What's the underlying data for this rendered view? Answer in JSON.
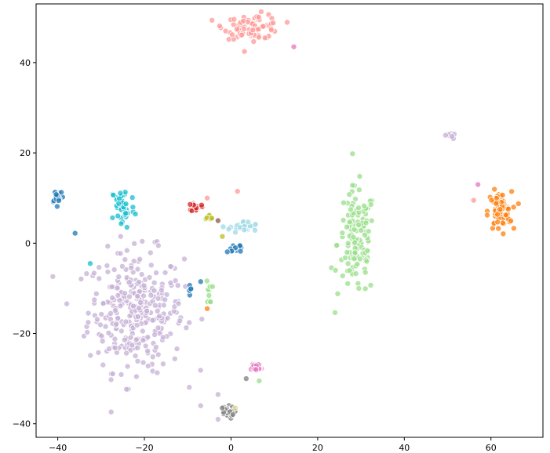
{
  "chart_data": {
    "type": "scatter",
    "title": "",
    "xlabel": "",
    "ylabel": "",
    "xlim": [
      -45,
      72
    ],
    "ylim": [
      -43,
      53
    ],
    "x_ticks": [
      -40,
      -20,
      0,
      20,
      40,
      60
    ],
    "y_ticks": [
      -40,
      -20,
      0,
      20,
      40
    ],
    "x_tick_labels": [
      "−40",
      "−20",
      "0",
      "20",
      "40",
      "60"
    ],
    "y_tick_labels": [
      "−40",
      "−20",
      "0",
      "20",
      "40"
    ],
    "grid": false,
    "marker_alpha": 0.75,
    "clusters": [
      {
        "color": "#c5b0d5",
        "center": [
          -22,
          -15
        ],
        "spread": [
          10,
          12
        ],
        "count": 320
      },
      {
        "color": "#98df8a",
        "center": [
          29,
          0
        ],
        "spread": [
          4,
          11
        ],
        "count": 130
      },
      {
        "color": "#ff9896",
        "center": [
          5,
          48
        ],
        "spread": [
          6,
          2.5
        ],
        "count": 80
      },
      {
        "color": "#ff7f0e",
        "center": [
          62,
          7
        ],
        "spread": [
          2.5,
          4
        ],
        "count": 70
      },
      {
        "color": "#17becf",
        "center": [
          -25,
          8
        ],
        "spread": [
          2.5,
          4.5
        ],
        "count": 45
      },
      {
        "color": "#1f77b4",
        "center": [
          -40,
          10.5
        ],
        "spread": [
          1.3,
          1.5
        ],
        "count": 18
      },
      {
        "color": "#9edae5",
        "center": [
          3,
          3.5
        ],
        "spread": [
          3,
          1.2
        ],
        "count": 30
      },
      {
        "color": "#1f77b4",
        "center": [
          1,
          -1
        ],
        "spread": [
          2,
          1
        ],
        "count": 12
      },
      {
        "color": "#d62728",
        "center": [
          -8,
          8
        ],
        "spread": [
          1,
          1
        ],
        "count": 14
      },
      {
        "color": "#bcbd22",
        "center": [
          -5,
          6
        ],
        "spread": [
          1,
          0.6
        ],
        "count": 8
      },
      {
        "color": "#e377c2",
        "center": [
          5.5,
          -27.5
        ],
        "spread": [
          1.5,
          1
        ],
        "count": 25
      },
      {
        "color": "#7f7f7f",
        "center": [
          -1,
          -37.5
        ],
        "spread": [
          1.5,
          1.2
        ],
        "count": 25
      },
      {
        "color": "#c5b0d5",
        "center": [
          50.5,
          23.8
        ],
        "spread": [
          1,
          0.6
        ],
        "count": 12
      },
      {
        "color": "#98df8a",
        "center": [
          -5,
          -11
        ],
        "spread": [
          0.6,
          2.5
        ],
        "count": 10
      },
      {
        "color": "#1f77b4",
        "center": [
          -9.5,
          -10.5
        ],
        "spread": [
          0.4,
          1.2
        ],
        "count": 6
      }
    ],
    "extra_points": [
      {
        "x": -36,
        "y": 2.2,
        "color": "#1f77b4"
      },
      {
        "x": -32.5,
        "y": -4.5,
        "color": "#17becf"
      },
      {
        "x": -5.5,
        "y": 10,
        "color": "#ff9896"
      },
      {
        "x": -3,
        "y": 5,
        "color": "#8c564b"
      },
      {
        "x": -2,
        "y": 1.5,
        "color": "#bcbd22"
      },
      {
        "x": 1.5,
        "y": 11.5,
        "color": "#ff9896"
      },
      {
        "x": 14.5,
        "y": 43.5,
        "color": "#e377c2"
      },
      {
        "x": 57,
        "y": 13,
        "color": "#e377c2"
      },
      {
        "x": 56,
        "y": 9.5,
        "color": "#ff9896"
      },
      {
        "x": -5.5,
        "y": -14.5,
        "color": "#ff7f0e"
      },
      {
        "x": -7,
        "y": -8.5,
        "color": "#1f77b4"
      },
      {
        "x": 3.5,
        "y": -30,
        "color": "#7f7f7f"
      },
      {
        "x": 6.5,
        "y": -30.5,
        "color": "#98df8a"
      },
      {
        "x": 1,
        "y": -36.5,
        "color": "#dbdb8d"
      },
      {
        "x": -7,
        "y": -36,
        "color": "#c5b0d5"
      },
      {
        "x": -3,
        "y": -33.5,
        "color": "#c5b0d5"
      },
      {
        "x": -3,
        "y": -39,
        "color": "#c5b0d5"
      }
    ]
  }
}
